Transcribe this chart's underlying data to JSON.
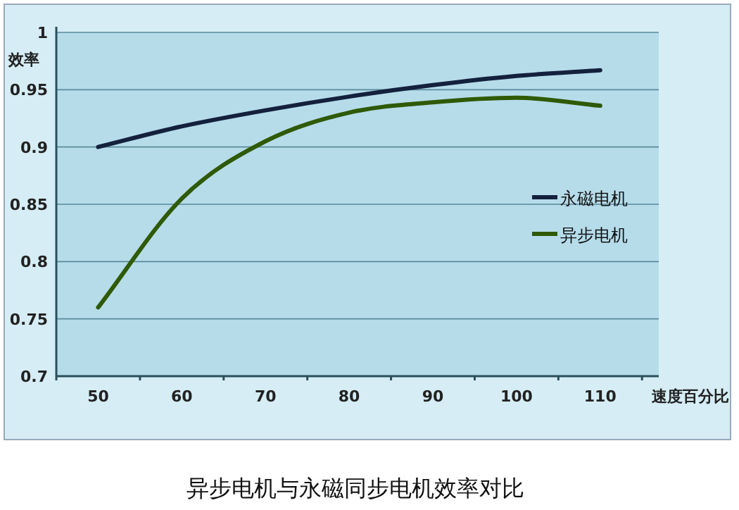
{
  "chart_data": {
    "type": "line",
    "title": "异步电机与永磁同步电机效率对比",
    "xlabel": "速度百分比",
    "ylabel": "效率",
    "categories": [
      "50",
      "60",
      "70",
      "80",
      "90",
      "100",
      "110"
    ],
    "series": [
      {
        "name": "永磁电机",
        "color": "#14213d",
        "values": [
          0.9,
          0.918,
          0.932,
          0.944,
          0.954,
          0.962,
          0.967
        ]
      },
      {
        "name": "异步电机",
        "color": "#2f5a06",
        "values": [
          0.76,
          0.855,
          0.905,
          0.93,
          0.939,
          0.943,
          0.936
        ]
      }
    ],
    "ylim": [
      0.7,
      1
    ],
    "yticks": [
      0.7,
      0.75,
      0.8,
      0.85,
      0.9,
      0.95,
      1
    ],
    "grid": "y",
    "legend": "right"
  }
}
